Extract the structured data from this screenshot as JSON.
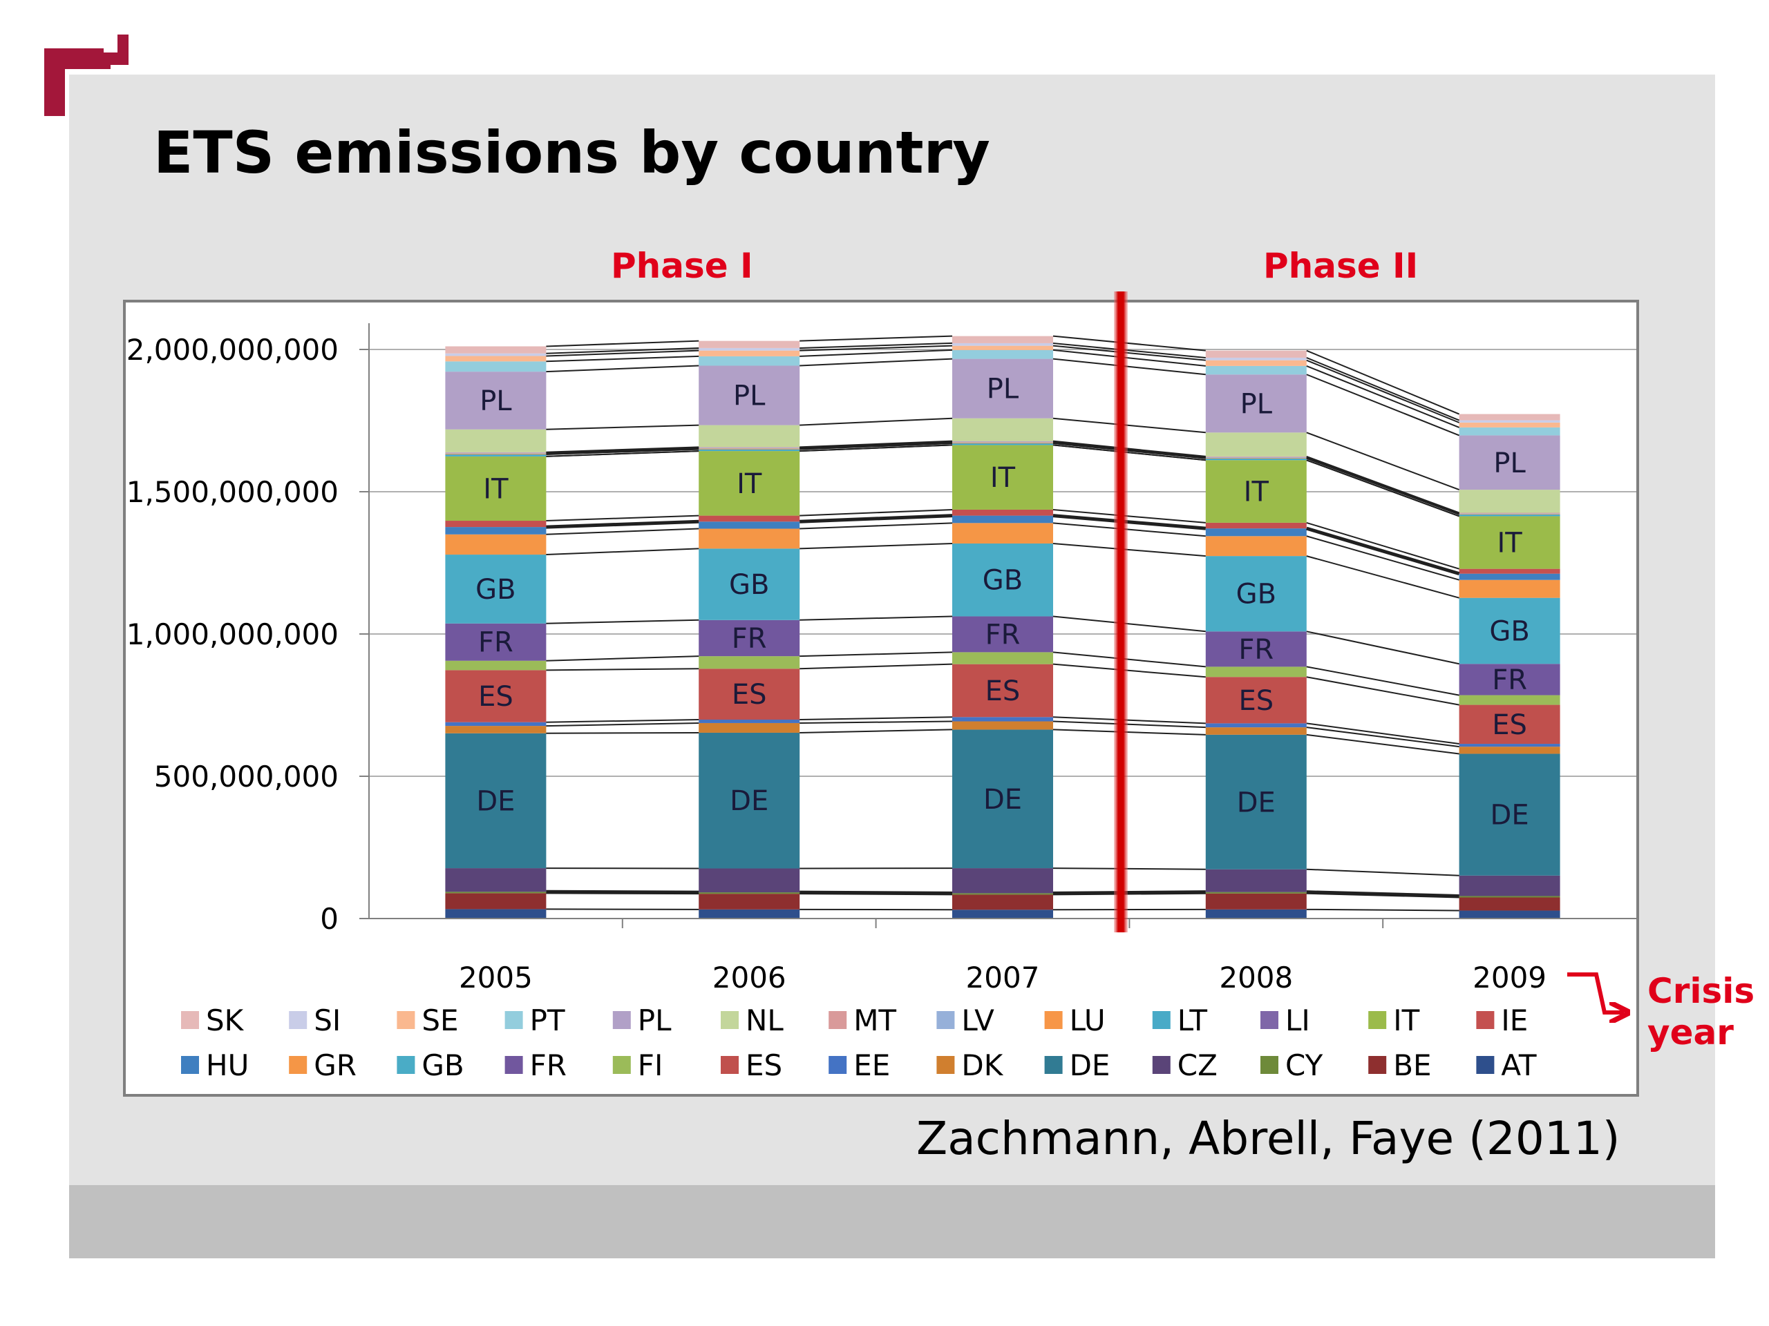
{
  "slide": {
    "title": "ETS emissions by country",
    "phase_1_label": "Phase I",
    "phase_2_label": "Phase II",
    "crisis_label_line1": "Crisis",
    "crisis_label_line2": "year",
    "citation": "Zachmann, Abrell, Faye (2011)",
    "logo_color": "#a3173a",
    "accent_color": "#e0001a"
  },
  "chart_data": {
    "type": "bar",
    "stacked": true,
    "connector_lines": true,
    "title": "",
    "xlabel": "",
    "ylabel": "",
    "ylim": [
      0,
      2000000000
    ],
    "yticks": [
      0,
      500000000,
      1000000000,
      1500000000,
      2000000000
    ],
    "ytick_labels": [
      "0",
      "500,000,000",
      "1,000,000,000",
      "1,500,000,000",
      "2,000,000,000"
    ],
    "categories": [
      "2005",
      "2006",
      "2007",
      "2008",
      "2009"
    ],
    "phase_divider_between": [
      "2007",
      "2008"
    ],
    "grid": true,
    "legend_position": "bottom",
    "series": [
      {
        "name": "AT",
        "color": "#2e4f8c",
        "values": [
          33000000,
          32000000,
          31000000,
          32000000,
          28000000
        ]
      },
      {
        "name": "BE",
        "color": "#8e2f2f",
        "values": [
          56000000,
          55000000,
          53000000,
          56000000,
          46000000
        ]
      },
      {
        "name": "CY",
        "color": "#6e8a3a",
        "values": [
          5000000,
          5000000,
          5000000,
          5000000,
          5000000
        ]
      },
      {
        "name": "CZ",
        "color": "#5a4478",
        "values": [
          83000000,
          84000000,
          88000000,
          80000000,
          72000000
        ]
      },
      {
        "name": "DE",
        "color": "#317b93",
        "values": [
          474000000,
          477000000,
          487000000,
          473000000,
          428000000
        ]
      },
      {
        "name": "DK",
        "color": "#d07f2f",
        "values": [
          26000000,
          34000000,
          29000000,
          26000000,
          25000000
        ]
      },
      {
        "name": "EE",
        "color": "#4473c4",
        "values": [
          13000000,
          12000000,
          15000000,
          14000000,
          10000000
        ]
      },
      {
        "name": "ES",
        "color": "#c0504d",
        "values": [
          183000000,
          179000000,
          186000000,
          163000000,
          137000000
        ]
      },
      {
        "name": "FI",
        "color": "#9bbb59",
        "values": [
          33000000,
          44000000,
          42000000,
          36000000,
          34000000
        ]
      },
      {
        "name": "FR",
        "color": "#71579e",
        "values": [
          131000000,
          127000000,
          126000000,
          124000000,
          110000000
        ]
      },
      {
        "name": "GB",
        "color": "#4aacc6",
        "values": [
          242000000,
          251000000,
          256000000,
          265000000,
          232000000
        ]
      },
      {
        "name": "GR",
        "color": "#f59646",
        "values": [
          71000000,
          70000000,
          72000000,
          70000000,
          63000000
        ]
      },
      {
        "name": "HU",
        "color": "#3f7fc0",
        "values": [
          26000000,
          25000000,
          26000000,
          27000000,
          22000000
        ]
      },
      {
        "name": "IE",
        "color": "#c4504f",
        "values": [
          22000000,
          21000000,
          21000000,
          20000000,
          17000000
        ]
      },
      {
        "name": "IT",
        "color": "#9bbb4a",
        "values": [
          226000000,
          227000000,
          227000000,
          220000000,
          185000000
        ]
      },
      {
        "name": "LI",
        "color": "#7f66a8",
        "values": [
          0,
          0,
          0,
          0,
          0
        ]
      },
      {
        "name": "LT",
        "color": "#48aac7",
        "values": [
          7000000,
          6000000,
          6000000,
          6000000,
          6000000
        ]
      },
      {
        "name": "LU",
        "color": "#f79647",
        "values": [
          3000000,
          3000000,
          3000000,
          2000000,
          2000000
        ]
      },
      {
        "name": "LV",
        "color": "#96b0d9",
        "values": [
          3000000,
          3000000,
          3000000,
          3000000,
          2000000
        ]
      },
      {
        "name": "MT",
        "color": "#d99a9a",
        "values": [
          2000000,
          2000000,
          2000000,
          2000000,
          2000000
        ]
      },
      {
        "name": "NL",
        "color": "#c3d69b",
        "values": [
          80000000,
          77000000,
          80000000,
          84000000,
          81000000
        ]
      },
      {
        "name": "PL",
        "color": "#b1a0c7",
        "values": [
          203000000,
          209000000,
          209000000,
          204000000,
          191000000
        ]
      },
      {
        "name": "PT",
        "color": "#93cddd",
        "values": [
          36000000,
          33000000,
          31000000,
          30000000,
          28000000
        ]
      },
      {
        "name": "SE",
        "color": "#fab88f",
        "values": [
          19000000,
          20000000,
          15000000,
          20000000,
          17000000
        ]
      },
      {
        "name": "SI",
        "color": "#c9cde8",
        "values": [
          9000000,
          9000000,
          9000000,
          9000000,
          8000000
        ]
      },
      {
        "name": "SK",
        "color": "#e6b9b8",
        "values": [
          25000000,
          25000000,
          25000000,
          25000000,
          22000000
        ]
      }
    ],
    "labeled_series": [
      "DE",
      "ES",
      "FR",
      "GB",
      "IT",
      "PL"
    ],
    "legend_rows": [
      [
        "SK",
        "SI",
        "SE",
        "PT",
        "PL",
        "NL",
        "MT",
        "LV",
        "LU",
        "LT",
        "LI",
        "IT",
        "IE"
      ],
      [
        "HU",
        "GR",
        "GB",
        "FR",
        "FI",
        "ES",
        "EE",
        "DK",
        "DE",
        "CZ",
        "CY",
        "BE",
        "AT"
      ]
    ]
  }
}
